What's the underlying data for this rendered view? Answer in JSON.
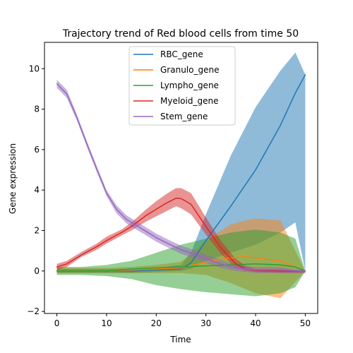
{
  "chart_data": {
    "type": "line",
    "title": "Trajectory trend of Red blood cells from time 50",
    "xlabel": "Time",
    "ylabel": "Gene expression",
    "xlim": [
      -2.5,
      52.5
    ],
    "ylim": [
      -2.1,
      11.3
    ],
    "xticks": [
      0,
      10,
      20,
      30,
      40,
      50
    ],
    "yticks": [
      -2,
      0,
      2,
      4,
      6,
      8,
      10
    ],
    "legend_position": "top-center",
    "grid": false,
    "series": [
      {
        "name": "RBC_gene",
        "color": "#1f77b4",
        "x": [
          0,
          5,
          10,
          15,
          20,
          25,
          27,
          30,
          35,
          40,
          45,
          48,
          50
        ],
        "y": [
          0.0,
          0.0,
          0.0,
          0.0,
          0.05,
          0.1,
          0.4,
          1.5,
          3.2,
          5.0,
          7.2,
          8.8,
          9.7
        ],
        "lower": [
          -0.1,
          -0.1,
          -0.1,
          -0.1,
          -0.05,
          0.0,
          0.1,
          0.5,
          0.9,
          1.3,
          1.9,
          2.4,
          0.0
        ],
        "upper": [
          0.1,
          0.1,
          0.1,
          0.1,
          0.15,
          0.3,
          0.9,
          2.8,
          5.7,
          8.1,
          9.9,
          10.8,
          9.7
        ]
      },
      {
        "name": "Granulo_gene",
        "color": "#ff7f0e",
        "x": [
          0,
          5,
          10,
          15,
          20,
          25,
          30,
          35,
          38,
          40,
          45,
          50
        ],
        "y": [
          0.0,
          0.0,
          0.0,
          0.05,
          0.1,
          0.15,
          0.45,
          0.65,
          0.7,
          0.65,
          0.5,
          0.0
        ],
        "lower": [
          -0.1,
          -0.1,
          -0.1,
          -0.1,
          -0.1,
          -0.1,
          -0.2,
          -0.6,
          -0.9,
          -1.1,
          -1.35,
          0.0
        ],
        "upper": [
          0.15,
          0.15,
          0.15,
          0.2,
          0.3,
          0.45,
          1.5,
          2.3,
          2.5,
          2.6,
          2.5,
          0.0
        ]
      },
      {
        "name": "Lympho_gene",
        "color": "#2ca02c",
        "x": [
          0,
          5,
          10,
          15,
          20,
          25,
          30,
          35,
          40,
          45,
          48,
          50
        ],
        "y": [
          0.0,
          0.0,
          0.0,
          0.1,
          0.15,
          0.2,
          0.25,
          0.3,
          0.35,
          0.3,
          0.2,
          0.0
        ],
        "lower": [
          -0.2,
          -0.2,
          -0.25,
          -0.4,
          -0.7,
          -0.9,
          -1.05,
          -1.15,
          -1.25,
          -1.1,
          -0.8,
          0.0
        ],
        "upper": [
          0.2,
          0.2,
          0.3,
          0.5,
          0.9,
          1.3,
          1.6,
          1.9,
          2.05,
          1.9,
          1.6,
          0.0
        ]
      },
      {
        "name": "Myeloid_gene",
        "color": "#d62728",
        "x": [
          0,
          2,
          5,
          8,
          10,
          13,
          15,
          18,
          20,
          22,
          24,
          25,
          27,
          30,
          33,
          36,
          38,
          40,
          45,
          50
        ],
        "y": [
          0.2,
          0.35,
          0.8,
          1.2,
          1.5,
          1.9,
          2.2,
          2.75,
          3.05,
          3.35,
          3.6,
          3.58,
          3.3,
          2.2,
          1.15,
          0.35,
          0.1,
          0.02,
          0.0,
          0.0
        ],
        "lower": [
          0.05,
          0.2,
          0.7,
          1.05,
          1.35,
          1.75,
          2.0,
          2.45,
          2.7,
          2.95,
          3.2,
          3.1,
          2.8,
          1.8,
          0.85,
          0.15,
          0.0,
          -0.05,
          -0.1,
          -0.1
        ],
        "upper": [
          0.35,
          0.5,
          0.95,
          1.35,
          1.7,
          2.05,
          2.4,
          3.05,
          3.45,
          3.8,
          4.1,
          4.1,
          3.85,
          2.65,
          1.5,
          0.6,
          0.25,
          0.1,
          0.1,
          0.0
        ]
      },
      {
        "name": "Stem_gene",
        "color": "#9467bd",
        "x": [
          0,
          2,
          4,
          6,
          8,
          10,
          12,
          14,
          16,
          18,
          20,
          22,
          25,
          28,
          30,
          33,
          36,
          38,
          40,
          45,
          50
        ],
        "y": [
          9.25,
          8.75,
          7.6,
          6.3,
          5.05,
          3.85,
          3.05,
          2.55,
          2.25,
          1.95,
          1.65,
          1.4,
          1.05,
          0.8,
          0.6,
          0.35,
          0.15,
          0.1,
          0.05,
          0.05,
          0.0
        ],
        "lower": [
          9.05,
          8.55,
          7.45,
          6.15,
          4.9,
          3.7,
          2.85,
          2.35,
          2.05,
          1.75,
          1.45,
          1.2,
          0.85,
          0.6,
          0.4,
          0.15,
          0.0,
          -0.05,
          -0.1,
          -0.1,
          -0.1
        ],
        "upper": [
          9.45,
          8.95,
          7.75,
          6.45,
          5.2,
          4.0,
          3.25,
          2.75,
          2.45,
          2.15,
          1.85,
          1.6,
          1.25,
          1.0,
          0.8,
          0.55,
          0.3,
          0.25,
          0.2,
          0.2,
          0.0
        ]
      }
    ]
  }
}
